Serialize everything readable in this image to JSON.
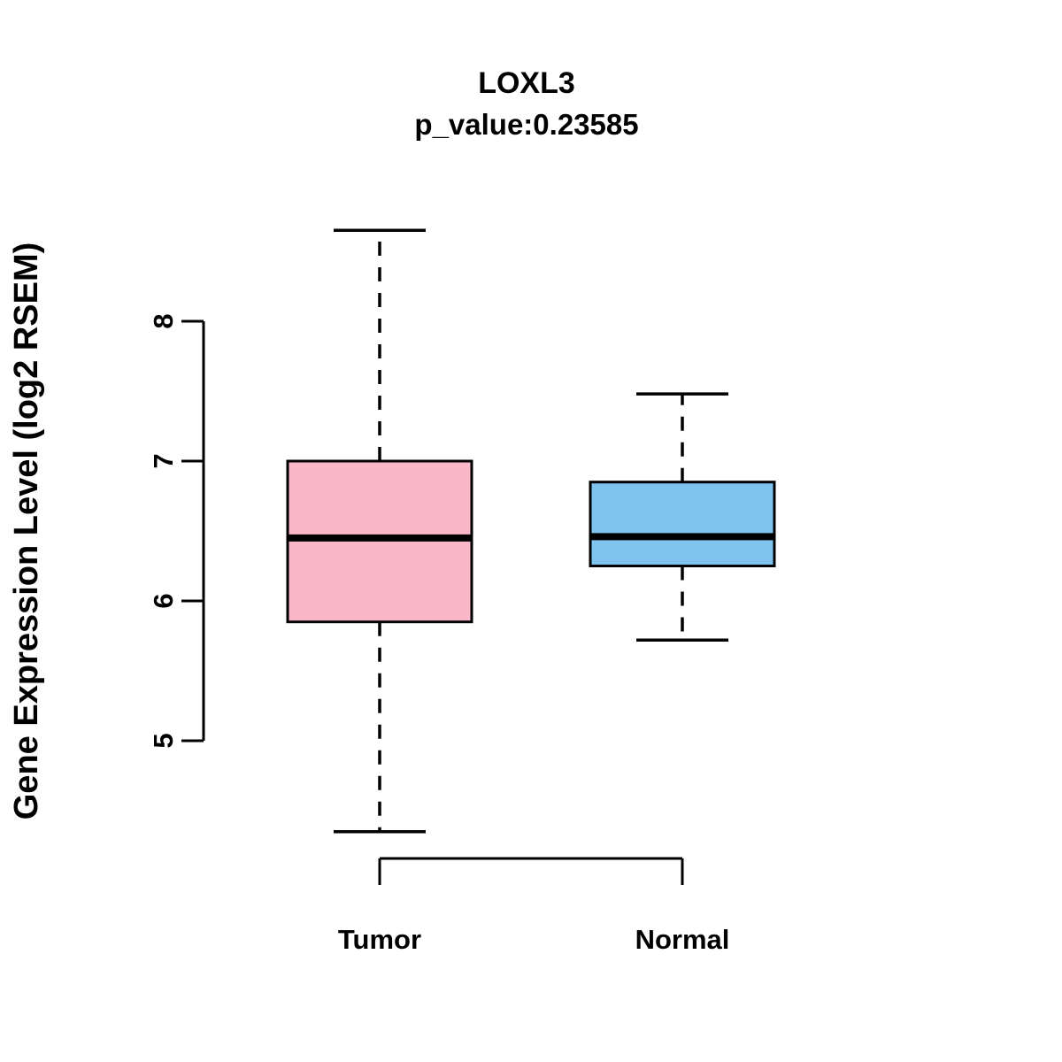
{
  "title": "LOXL3",
  "subtitle": "p_value:0.23585",
  "ylabel": "Gene Expression Level (log2 RSEM)",
  "chart_data": {
    "type": "boxplot",
    "title": "LOXL3",
    "subtitle": "p_value:0.23585",
    "xlabel": "",
    "ylabel": "Gene Expression Level (log2 RSEM)",
    "categories": [
      "Tumor",
      "Normal"
    ],
    "y_ticks": [
      5,
      6,
      7,
      8
    ],
    "ylim": [
      4.1,
      8.9
    ],
    "grid": false,
    "legend": "none",
    "colors": {
      "tumor_box": "#F9B7C8",
      "normal_box": "#7EC4EE",
      "stroke": "#000000"
    },
    "series": [
      {
        "name": "Tumor",
        "whisker_low": 4.35,
        "q1": 5.85,
        "median": 6.45,
        "q3": 7.0,
        "whisker_high": 8.65,
        "color": "#F9B7C8"
      },
      {
        "name": "Normal",
        "whisker_low": 5.72,
        "q1": 6.25,
        "median": 6.46,
        "q3": 6.85,
        "whisker_high": 7.48,
        "color": "#7EC4EE"
      }
    ]
  }
}
